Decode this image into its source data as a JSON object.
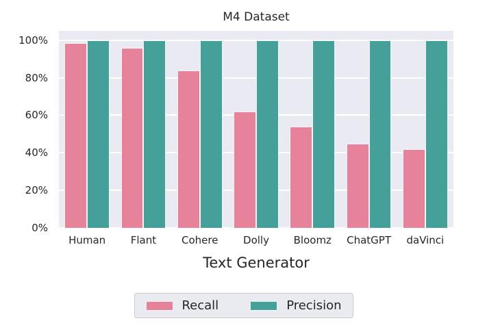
{
  "chart_data": {
    "type": "bar",
    "title": "M4 Dataset",
    "xlabel": "Text Generator",
    "ylabel": "",
    "categories": [
      "Human",
      "Flant",
      "Cohere",
      "Dolly",
      "Bloomz",
      "ChatGPT",
      "daVinci"
    ],
    "series": [
      {
        "name": "Recall",
        "color": "#e6829a",
        "values": [
          98.5,
          96,
          84,
          62,
          54,
          45,
          42
        ]
      },
      {
        "name": "Precision",
        "color": "#46a09a",
        "values": [
          100,
          100,
          100,
          100,
          100,
          100,
          100
        ]
      }
    ],
    "ylim": [
      0,
      105
    ],
    "yticks": [
      {
        "value": 0,
        "label": "0%"
      },
      {
        "value": 20,
        "label": "20%"
      },
      {
        "value": 40,
        "label": "40%"
      },
      {
        "value": 60,
        "label": "60%"
      },
      {
        "value": 80,
        "label": "80%"
      },
      {
        "value": 100,
        "label": "100%"
      }
    ],
    "grid": true,
    "legend_position": "bottom",
    "colors": {
      "plot_background": "#eaeaf2",
      "gridline": "#ffffff",
      "text": "#262626"
    }
  }
}
